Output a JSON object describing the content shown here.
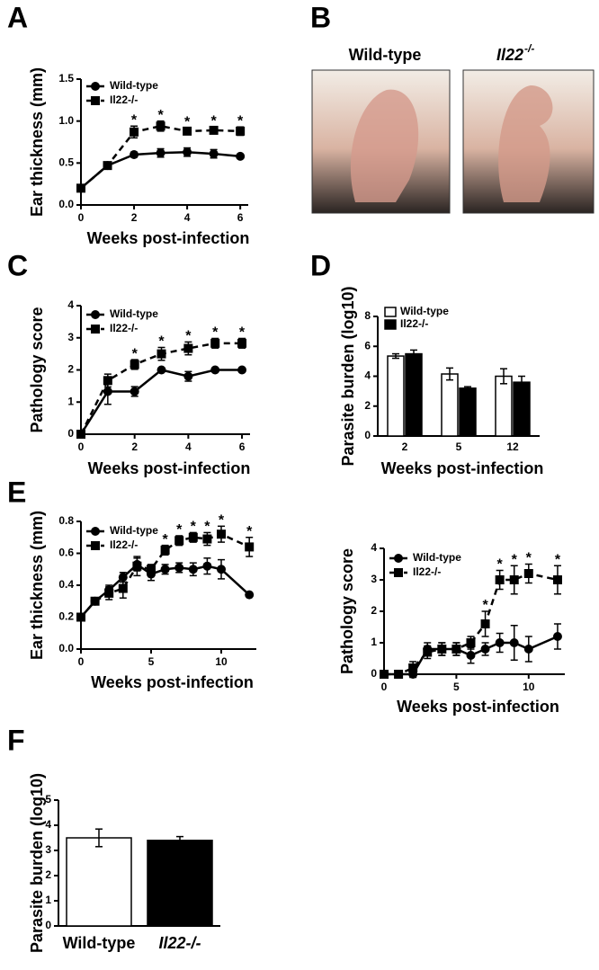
{
  "panel_labels": [
    "A",
    "B",
    "C",
    "D",
    "E",
    "F"
  ],
  "photos": [
    {
      "text": "Wild-type"
    },
    {
      "text": "Il22",
      "sup": "-/-"
    }
  ],
  "chart_data": [
    {
      "type": "line",
      "ylabel": "Ear thickness (mm)",
      "xlabel": "Weeks post-infection",
      "x": [
        0,
        1,
        2,
        3,
        4,
        5,
        6
      ],
      "xlim": [
        0,
        6.3
      ],
      "xticks": [
        0,
        2,
        4,
        6
      ],
      "ylim": [
        0,
        1.5
      ],
      "yticks": [
        {
          "value": 0,
          "label": "0.0"
        },
        0.5,
        {
          "value": 1,
          "label": "1.0"
        },
        1.5
      ],
      "legend": "upper left",
      "series": [
        {
          "name": "Wild-type",
          "color": "#000000",
          "marker": "circle",
          "dashed": false,
          "values": [
            0.2,
            0.47,
            0.6,
            0.62,
            0.63,
            0.61,
            0.58
          ],
          "errors": [
            0.02,
            0.04,
            0.03,
            0.05,
            0.05,
            0.05,
            0.02
          ]
        },
        {
          "name": "Il22-/-",
          "color": "#000000",
          "marker": "square",
          "dashed": true,
          "values": [
            0.2,
            0.47,
            0.87,
            0.94,
            0.88,
            0.89,
            0.88
          ],
          "errors": [
            0.02,
            0.04,
            0.07,
            0.06,
            0.04,
            0.04,
            0.05
          ]
        }
      ],
      "annotations": [
        {
          "x": 2,
          "text": "*"
        },
        {
          "x": 3,
          "text": "*"
        },
        {
          "x": 4,
          "text": "*"
        },
        {
          "x": 5,
          "text": "*"
        },
        {
          "x": 6,
          "text": "*"
        }
      ]
    },
    {
      "type": "line",
      "ylabel": "Pathology score",
      "xlabel": "Weeks post-infection",
      "x": [
        0,
        1,
        2,
        3,
        4,
        5,
        6
      ],
      "xlim": [
        0,
        6.3
      ],
      "xticks": [
        0,
        2,
        4,
        6
      ],
      "ylim": [
        0,
        4
      ],
      "yticks": [
        0,
        1,
        2,
        3,
        4
      ],
      "legend": "upper left",
      "series": [
        {
          "name": "Wild-type",
          "color": "#000000",
          "marker": "circle",
          "dashed": false,
          "values": [
            0,
            1.33,
            1.33,
            2,
            1.8,
            2,
            2
          ],
          "errors": [
            0,
            0.4,
            0.15,
            0,
            0.15,
            0,
            0
          ]
        },
        {
          "name": "Il22-/-",
          "color": "#000000",
          "marker": "square",
          "dashed": true,
          "values": [
            0,
            1.67,
            2.17,
            2.5,
            2.67,
            2.83,
            2.83
          ],
          "errors": [
            0,
            0.2,
            0.15,
            0.2,
            0.2,
            0.15,
            0.15
          ]
        }
      ],
      "annotations": [
        {
          "x": 2,
          "text": "*"
        },
        {
          "x": 3,
          "text": "*"
        },
        {
          "x": 4,
          "text": "*"
        },
        {
          "x": 5,
          "text": "*"
        },
        {
          "x": 6,
          "text": "*"
        }
      ]
    },
    {
      "type": "bar",
      "ylabel": "Parasite burden (log10)",
      "xlabel": "Weeks post-infection",
      "categories": [
        "2",
        "5",
        "12"
      ],
      "ylim": [
        0,
        8
      ],
      "yticks": [
        0,
        2,
        4,
        6,
        8
      ],
      "legend": "upper left",
      "series": [
        {
          "name": "Wild-type",
          "color": "#ffffff",
          "values": [
            5.35,
            4.15,
            4.0
          ],
          "errors": [
            0.15,
            0.4,
            0.5
          ]
        },
        {
          "name": "Il22-/-",
          "color": "#000000",
          "values": [
            5.5,
            3.2,
            3.6
          ],
          "errors": [
            0.25,
            0.1,
            0.4
          ]
        }
      ]
    },
    {
      "type": "line",
      "ylabel": "Ear thickness (mm)",
      "xlabel": "Weeks post-infection",
      "x": [
        0,
        1,
        2,
        3,
        4,
        5,
        6,
        7,
        8,
        9,
        10,
        12
      ],
      "xlim": [
        0,
        12.5
      ],
      "xticks": [
        0,
        5,
        10
      ],
      "ylim": [
        0,
        0.8
      ],
      "yticks": [
        {
          "value": 0,
          "label": "0.0"
        },
        0.2,
        0.4,
        0.6,
        0.8
      ],
      "legend": "upper left",
      "series": [
        {
          "name": "Wild-type",
          "color": "#000000",
          "marker": "circle",
          "dashed": false,
          "values": [
            0.2,
            0.3,
            0.37,
            0.45,
            0.53,
            0.47,
            0.5,
            0.51,
            0.5,
            0.52,
            0.5,
            0.34
          ],
          "errors": [
            0.01,
            0.02,
            0.03,
            0.03,
            0.04,
            0.04,
            0.03,
            0.03,
            0.04,
            0.05,
            0.06,
            0.01
          ]
        },
        {
          "name": "Il22-/-",
          "color": "#000000",
          "marker": "square",
          "dashed": true,
          "values": [
            0.2,
            0.3,
            0.35,
            0.38,
            0.52,
            0.5,
            0.62,
            0.68,
            0.7,
            0.69,
            0.72,
            0.64
          ],
          "errors": [
            0.01,
            0.02,
            0.04,
            0.06,
            0.06,
            0.03,
            0.03,
            0.03,
            0.03,
            0.04,
            0.05,
            0.06
          ]
        }
      ],
      "annotations": [
        {
          "x": 6,
          "text": "*"
        },
        {
          "x": 7,
          "text": "*"
        },
        {
          "x": 8,
          "text": "*"
        },
        {
          "x": 9,
          "text": "*"
        },
        {
          "x": 10,
          "text": "*"
        },
        {
          "x": 12,
          "text": "*"
        }
      ]
    },
    {
      "type": "line",
      "ylabel": "Pathology score",
      "xlabel": "Weeks post-infection",
      "x": [
        0,
        1,
        2,
        3,
        4,
        5,
        6,
        7,
        8,
        9,
        10,
        12
      ],
      "xlim": [
        0,
        12.5
      ],
      "xticks": [
        0,
        5,
        10
      ],
      "ylim": [
        0,
        4
      ],
      "yticks": [
        0,
        1,
        2,
        3,
        4
      ],
      "legend": "upper left",
      "series": [
        {
          "name": "Wild-type",
          "color": "#000000",
          "marker": "circle",
          "dashed": false,
          "values": [
            0,
            0,
            0,
            0.8,
            0.8,
            0.8,
            0.6,
            0.8,
            1.0,
            1.0,
            0.8,
            1.2
          ],
          "errors": [
            0,
            0,
            0.1,
            0.2,
            0.2,
            0.2,
            0.25,
            0.2,
            0.3,
            0.55,
            0.4,
            0.4
          ]
        },
        {
          "name": "Il22-/-",
          "color": "#000000",
          "marker": "square",
          "dashed": true,
          "values": [
            0,
            0,
            0.2,
            0.7,
            0.8,
            0.8,
            1.0,
            1.6,
            3.0,
            3.0,
            3.2,
            3.0
          ],
          "errors": [
            0,
            0,
            0.2,
            0.2,
            0.2,
            0.2,
            0.2,
            0.4,
            0.3,
            0.45,
            0.3,
            0.45
          ]
        }
      ],
      "annotations": [
        {
          "x": 7,
          "text": "*"
        },
        {
          "x": 8,
          "text": "*"
        },
        {
          "x": 9,
          "text": "*"
        },
        {
          "x": 10,
          "text": "*"
        },
        {
          "x": 12,
          "text": "*"
        }
      ]
    },
    {
      "type": "bar",
      "ylabel": "Parasite burden (log10)",
      "categories": [
        "Wild-type",
        "Il22-/-"
      ],
      "ylim": [
        0,
        5
      ],
      "yticks": [
        0,
        1,
        2,
        3,
        4,
        5
      ],
      "values": [
        3.5,
        3.4
      ],
      "errors": [
        0.35,
        0.15
      ],
      "colors": [
        "#ffffff",
        "#000000"
      ]
    }
  ]
}
